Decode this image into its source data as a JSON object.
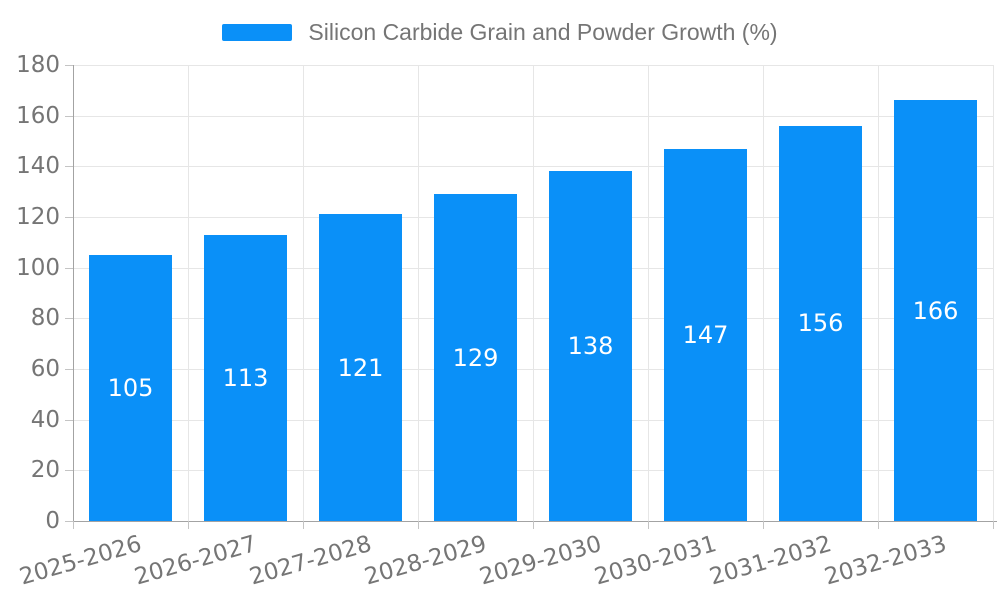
{
  "legend": {
    "label": "Silicon Carbide Grain and Powder Growth (%)"
  },
  "colors": {
    "bar": "#0a90f8",
    "grid": "#e6e6e6",
    "axis": "#a3a3a3",
    "tick": "#c4c4c4",
    "tick_text": "#757575",
    "legend_text": "#757575",
    "value_label": "#ffffff",
    "background": "#ffffff"
  },
  "chart_data": {
    "type": "bar",
    "title": "Silicon Carbide Grain and Powder Growth (%)",
    "categories": [
      "2025-2026",
      "2026-2027",
      "2027-2028",
      "2028-2029",
      "2029-2030",
      "2030-2031",
      "2031-2032",
      "2032-2033"
    ],
    "values": [
      105,
      113,
      121,
      129,
      138,
      147,
      156,
      166
    ],
    "xlabel": "",
    "ylabel": "",
    "ylim": [
      0,
      180
    ],
    "ytick_step": 20,
    "yticks": [
      0,
      20,
      40,
      60,
      80,
      100,
      120,
      140,
      160,
      180
    ],
    "grid": true,
    "legend_position": "top",
    "value_labels": "inside-middle"
  }
}
